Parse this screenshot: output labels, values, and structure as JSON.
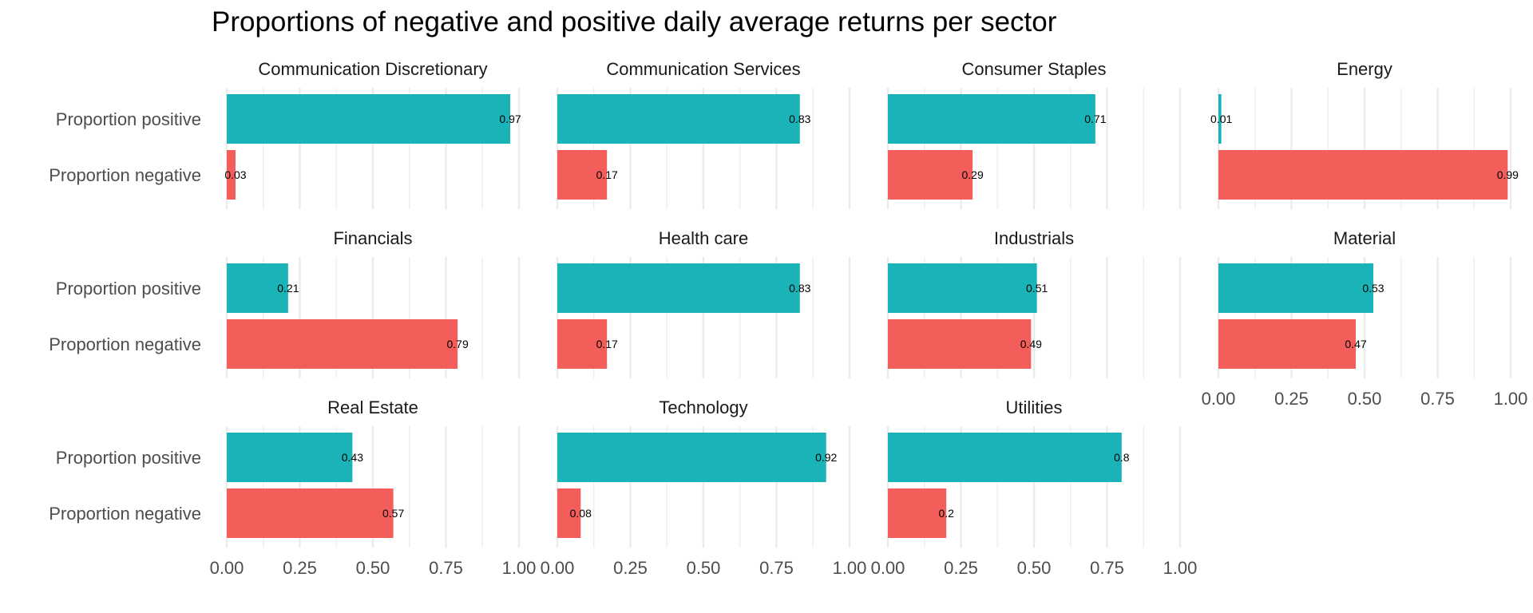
{
  "chart_data": {
    "type": "bar",
    "orientation": "horizontal",
    "title": "Proportions of negative and positive daily average returns per sector",
    "categories": [
      "Proportion positive",
      "Proportion negative"
    ],
    "xlim": [
      0,
      1
    ],
    "x_ticks": [
      "0.00",
      "0.25",
      "0.50",
      "0.75",
      "1.00"
    ],
    "grid": true,
    "legend": "none",
    "colors": {
      "Proportion positive": "#19B3B8",
      "Proportion negative": "#F35E5A"
    },
    "facets": [
      {
        "name": "Communication Discretionary",
        "values": [
          0.97,
          0.03
        ],
        "labels": [
          "0.97",
          "0.03"
        ]
      },
      {
        "name": "Communication Services",
        "values": [
          0.83,
          0.17
        ],
        "labels": [
          "0.83",
          "0.17"
        ]
      },
      {
        "name": "Consumer Staples",
        "values": [
          0.71,
          0.29
        ],
        "labels": [
          "0.71",
          "0.29"
        ]
      },
      {
        "name": "Energy",
        "values": [
          0.01,
          0.99
        ],
        "labels": [
          "0.01",
          "0.99"
        ]
      },
      {
        "name": "Financials",
        "values": [
          0.21,
          0.79
        ],
        "labels": [
          "0.21",
          "0.79"
        ]
      },
      {
        "name": "Health care",
        "values": [
          0.83,
          0.17
        ],
        "labels": [
          "0.83",
          "0.17"
        ]
      },
      {
        "name": "Industrials",
        "values": [
          0.51,
          0.49
        ],
        "labels": [
          "0.51",
          "0.49"
        ]
      },
      {
        "name": "Material",
        "values": [
          0.53,
          0.47
        ],
        "labels": [
          "0.53",
          "0.47"
        ]
      },
      {
        "name": "Real Estate",
        "values": [
          0.43,
          0.57
        ],
        "labels": [
          "0.43",
          "0.57"
        ]
      },
      {
        "name": "Technology",
        "values": [
          0.92,
          0.08
        ],
        "labels": [
          "0.92",
          "0.08"
        ]
      },
      {
        "name": "Utilities",
        "values": [
          0.8,
          0.2
        ],
        "labels": [
          "0.8",
          "0.2"
        ]
      }
    ]
  }
}
